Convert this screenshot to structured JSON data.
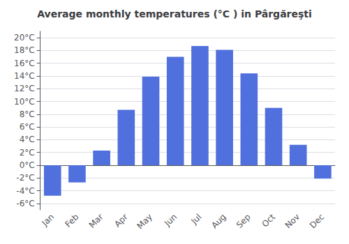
{
  "chart_data": {
    "type": "bar",
    "title": "Average monthly temperatures (°C ) in Pârgăreşti",
    "categories": [
      "Jan",
      "Feb",
      "Mar",
      "Apr",
      "May",
      "Jun",
      "Jul",
      "Aug",
      "Sep",
      "Oct",
      "Nov",
      "Dec"
    ],
    "values": [
      -4.8,
      -2.7,
      2.3,
      8.7,
      13.9,
      17.0,
      18.7,
      18.1,
      14.4,
      9.0,
      3.2,
      -2.1
    ],
    "ylim": [
      -7,
      21
    ],
    "yticks": [
      {
        "value": -6,
        "label": "-6°C"
      },
      {
        "value": -4,
        "label": "-4°C"
      },
      {
        "value": -2,
        "label": "-2°C"
      },
      {
        "value": 0,
        "label": "0°C"
      },
      {
        "value": 2,
        "label": "2°C"
      },
      {
        "value": 4,
        "label": "4°C"
      },
      {
        "value": 6,
        "label": "6°C"
      },
      {
        "value": 8,
        "label": "8°C"
      },
      {
        "value": 10,
        "label": "10°C"
      },
      {
        "value": 12,
        "label": "12°C"
      },
      {
        "value": 14,
        "label": "14°C"
      },
      {
        "value": 16,
        "label": "16°C"
      },
      {
        "value": 18,
        "label": "18°C"
      },
      {
        "value": 20,
        "label": "20°C"
      }
    ],
    "grid": true
  }
}
